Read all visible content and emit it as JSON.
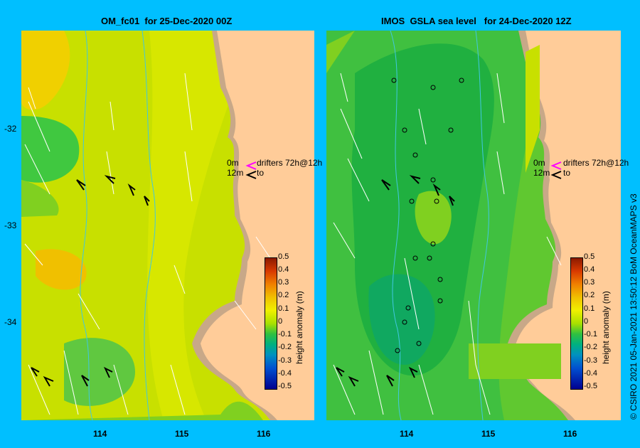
{
  "left_panel": {
    "title": "OM_fc01  for 25-Dec-2020 00Z",
    "latitude_labels": [
      "-32",
      "-33",
      "-34"
    ],
    "longitude_labels": [
      "114",
      "115",
      "116"
    ],
    "legend_line1_depth": "0m",
    "legend_line1_text": "drifters 72h@12h",
    "legend_line2_depth": "12m",
    "legend_line2_text": "to"
  },
  "right_panel": {
    "title": "IMOS  GSLA sea level   for 24-Dec-2020 12Z",
    "longitude_labels": [
      "114",
      "115",
      "116"
    ],
    "legend_line1_depth": "0m",
    "legend_line1_text": "drifters 72h@12h",
    "legend_line2_depth": "12m",
    "legend_line2_text": "to"
  },
  "colorbar": {
    "label": "height anomaly (m)",
    "ticks": [
      "0.5",
      "0.4",
      "0.3",
      "0.2",
      "0.1",
      "0",
      "-0.1",
      "-0.2",
      "-0.3",
      "-0.4",
      "-0.5"
    ]
  },
  "credit": "© CSIRO 2021   05-Jan-2021 13:50:12 BoM OceanMAPS v3",
  "colors": {
    "background": "#00bfff",
    "land": "#ffcc99",
    "shelf": "#c8a888",
    "drifter_0m": "#ff00ff",
    "drifter_12m": "#000000"
  }
}
